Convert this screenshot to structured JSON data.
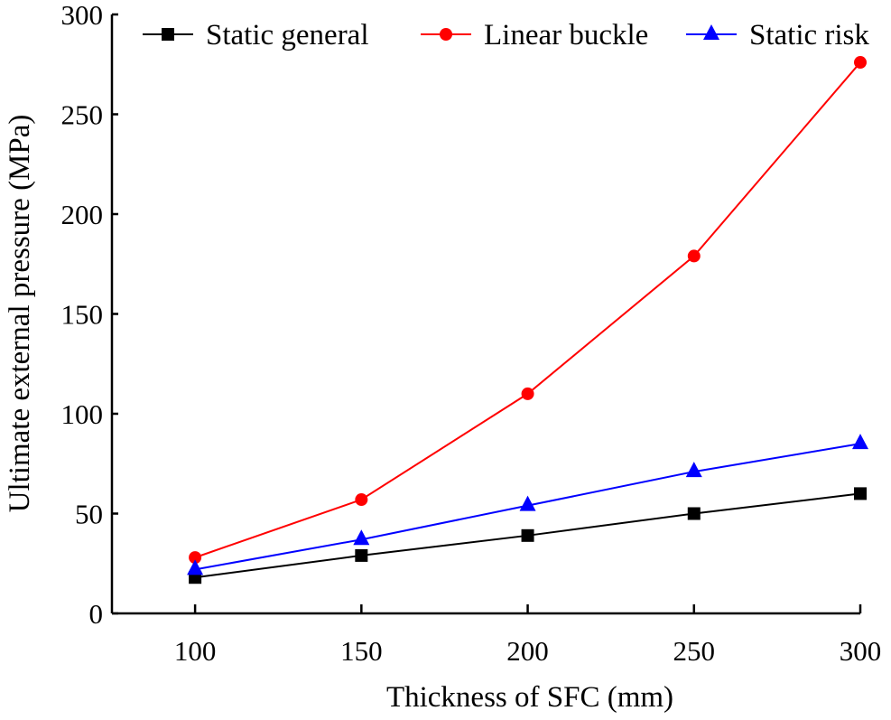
{
  "chart_data": {
    "type": "line",
    "title": "",
    "xlabel": "Thickness of SFC (mm)",
    "ylabel": "Ultimate external pressure (MPa)",
    "x": [
      100,
      150,
      200,
      250,
      300
    ],
    "xticks": [
      100,
      150,
      200,
      250,
      300
    ],
    "yticks": [
      0,
      50,
      100,
      150,
      200,
      250,
      300
    ],
    "xlim": [
      75,
      300
    ],
    "ylim": [
      0,
      300
    ],
    "grid": false,
    "legend_position": "top",
    "series": [
      {
        "name": "Static general",
        "color": "#000000",
        "marker": "square",
        "values": [
          18,
          29,
          39,
          50,
          60
        ]
      },
      {
        "name": "Linear buckle",
        "color": "#ff0000",
        "marker": "circle",
        "values": [
          28,
          57,
          110,
          179,
          276
        ]
      },
      {
        "name": "Static risk",
        "color": "#0000ff",
        "marker": "triangle",
        "values": [
          22,
          37,
          54,
          71,
          85
        ]
      }
    ]
  }
}
